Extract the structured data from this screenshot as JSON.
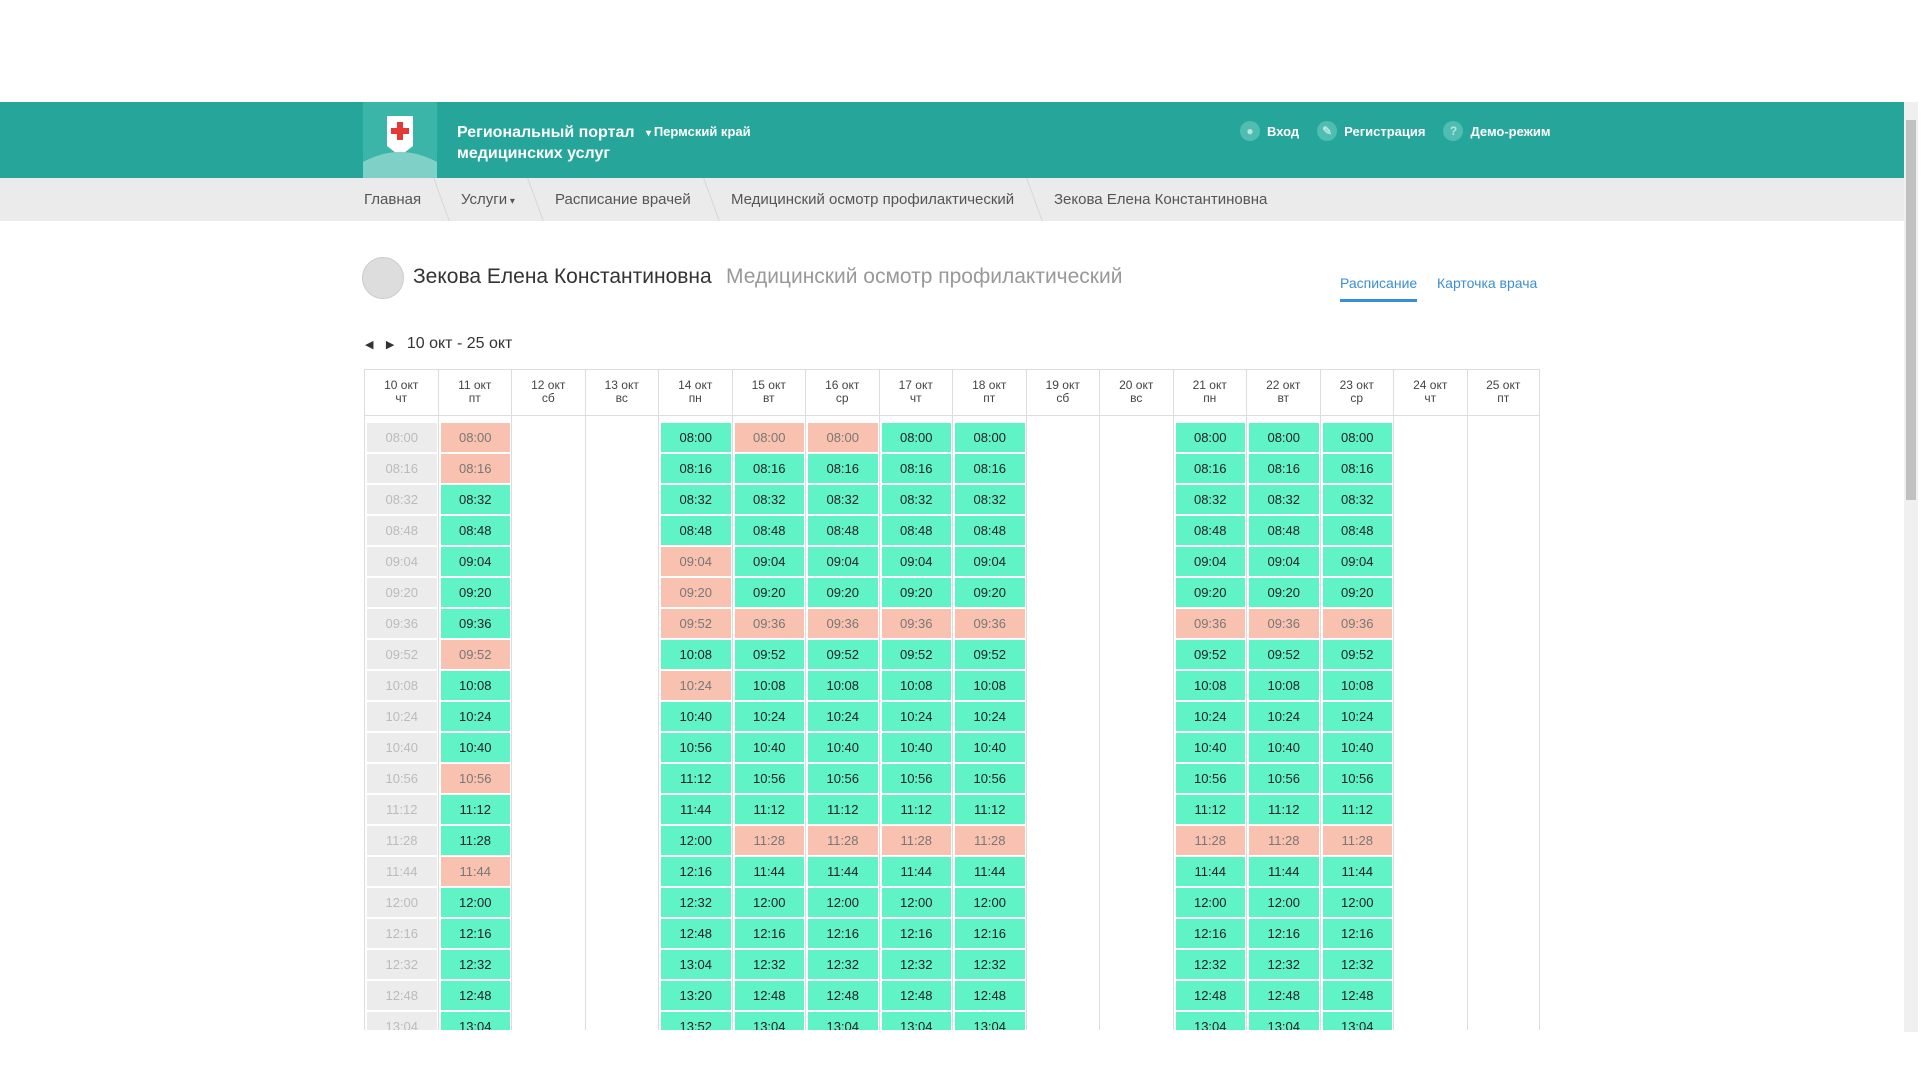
{
  "header": {
    "portal_title_line1": "Региональный портал",
    "portal_title_line2": "медицинских услуг",
    "region": "Пермский край",
    "links": [
      "Вход",
      "Регистрация",
      "Демо-режим"
    ]
  },
  "breadcrumbs": [
    "Главная",
    "Услуги",
    "Расписание врачей",
    "Медицинский осмотр профилактический",
    "Зекова Елена Константиновна"
  ],
  "doctor": {
    "name": "Зекова Елена Константиновна",
    "service": "Медицинский осмотр профилактический"
  },
  "tabs": [
    "Расписание",
    "Карточка врача"
  ],
  "active_tab": 0,
  "date_range": "10 окт - 25 окт",
  "schedule": {
    "columns": [
      {
        "date": "10 окт",
        "day": "чт",
        "times": [
          "08:00",
          "08:16",
          "08:32",
          "08:48",
          "09:04",
          "09:20",
          "09:36",
          "09:52",
          "10:08",
          "10:24",
          "10:40",
          "10:56",
          "11:12",
          "11:28",
          "11:44",
          "12:00",
          "12:16",
          "12:32",
          "12:48",
          "13:04"
        ],
        "states": [
          "past",
          "past",
          "past",
          "past",
          "past",
          "past",
          "past",
          "past",
          "past",
          "past",
          "past",
          "past",
          "past",
          "past",
          "past",
          "past",
          "past",
          "past",
          "past",
          "past"
        ]
      },
      {
        "date": "11 окт",
        "day": "пт",
        "times": [
          "08:00",
          "08:16",
          "08:32",
          "08:48",
          "09:04",
          "09:20",
          "09:36",
          "09:52",
          "10:08",
          "10:24",
          "10:40",
          "10:56",
          "11:12",
          "11:28",
          "11:44",
          "12:00",
          "12:16",
          "12:32",
          "12:48",
          "13:04"
        ],
        "states": [
          "busy",
          "busy",
          "free",
          "free",
          "free",
          "free",
          "free",
          "busy",
          "free",
          "free",
          "free",
          "busy",
          "free",
          "free",
          "busy",
          "free",
          "free",
          "free",
          "free",
          "free"
        ]
      },
      {
        "date": "12 окт",
        "day": "сб",
        "times": [],
        "states": []
      },
      {
        "date": "13 окт",
        "day": "вс",
        "times": [],
        "states": []
      },
      {
        "date": "14 окт",
        "day": "пн",
        "times": [
          "08:00",
          "08:16",
          "08:32",
          "08:48",
          "09:04",
          "09:20",
          "09:52",
          "10:08",
          "10:24",
          "10:40",
          "10:56",
          "11:12",
          "11:44",
          "12:00",
          "12:16",
          "12:32",
          "12:48",
          "13:04",
          "13:20",
          "13:52"
        ],
        "states": [
          "free",
          "free",
          "free",
          "free",
          "busy",
          "busy",
          "busy",
          "free",
          "busy",
          "free",
          "free",
          "free",
          "free",
          "free",
          "free",
          "free",
          "free",
          "free",
          "free",
          "free"
        ]
      },
      {
        "date": "15 окт",
        "day": "вт",
        "times": [
          "08:00",
          "08:16",
          "08:32",
          "08:48",
          "09:04",
          "09:20",
          "09:36",
          "09:52",
          "10:08",
          "10:24",
          "10:40",
          "10:56",
          "11:12",
          "11:28",
          "11:44",
          "12:00",
          "12:16",
          "12:32",
          "12:48",
          "13:04"
        ],
        "states": [
          "busy",
          "free",
          "free",
          "free",
          "free",
          "free",
          "busy",
          "free",
          "free",
          "free",
          "free",
          "free",
          "free",
          "busy",
          "free",
          "free",
          "free",
          "free",
          "free",
          "free"
        ]
      },
      {
        "date": "16 окт",
        "day": "ср",
        "times": [
          "08:00",
          "08:16",
          "08:32",
          "08:48",
          "09:04",
          "09:20",
          "09:36",
          "09:52",
          "10:08",
          "10:24",
          "10:40",
          "10:56",
          "11:12",
          "11:28",
          "11:44",
          "12:00",
          "12:16",
          "12:32",
          "12:48",
          "13:04"
        ],
        "states": [
          "busy",
          "free",
          "free",
          "free",
          "free",
          "free",
          "busy",
          "free",
          "free",
          "free",
          "free",
          "free",
          "free",
          "busy",
          "free",
          "free",
          "free",
          "free",
          "free",
          "free"
        ]
      },
      {
        "date": "17 окт",
        "day": "чт",
        "times": [
          "08:00",
          "08:16",
          "08:32",
          "08:48",
          "09:04",
          "09:20",
          "09:36",
          "09:52",
          "10:08",
          "10:24",
          "10:40",
          "10:56",
          "11:12",
          "11:28",
          "11:44",
          "12:00",
          "12:16",
          "12:32",
          "12:48",
          "13:04"
        ],
        "states": [
          "free",
          "free",
          "free",
          "free",
          "free",
          "free",
          "busy",
          "free",
          "free",
          "free",
          "free",
          "free",
          "free",
          "busy",
          "free",
          "free",
          "free",
          "free",
          "free",
          "free"
        ]
      },
      {
        "date": "18 окт",
        "day": "пт",
        "times": [
          "08:00",
          "08:16",
          "08:32",
          "08:48",
          "09:04",
          "09:20",
          "09:36",
          "09:52",
          "10:08",
          "10:24",
          "10:40",
          "10:56",
          "11:12",
          "11:28",
          "11:44",
          "12:00",
          "12:16",
          "12:32",
          "12:48",
          "13:04"
        ],
        "states": [
          "free",
          "free",
          "free",
          "free",
          "free",
          "free",
          "busy",
          "free",
          "free",
          "free",
          "free",
          "free",
          "free",
          "busy",
          "free",
          "free",
          "free",
          "free",
          "free",
          "free"
        ]
      },
      {
        "date": "19 окт",
        "day": "сб",
        "times": [],
        "states": []
      },
      {
        "date": "20 окт",
        "day": "вс",
        "times": [],
        "states": []
      },
      {
        "date": "21 окт",
        "day": "пн",
        "times": [
          "08:00",
          "08:16",
          "08:32",
          "08:48",
          "09:04",
          "09:20",
          "09:36",
          "09:52",
          "10:08",
          "10:24",
          "10:40",
          "10:56",
          "11:12",
          "11:28",
          "11:44",
          "12:00",
          "12:16",
          "12:32",
          "12:48",
          "13:04"
        ],
        "states": [
          "free",
          "free",
          "free",
          "free",
          "free",
          "free",
          "busy",
          "free",
          "free",
          "free",
          "free",
          "free",
          "free",
          "busy",
          "free",
          "free",
          "free",
          "free",
          "free",
          "free"
        ]
      },
      {
        "date": "22 окт",
        "day": "вт",
        "times": [
          "08:00",
          "08:16",
          "08:32",
          "08:48",
          "09:04",
          "09:20",
          "09:36",
          "09:52",
          "10:08",
          "10:24",
          "10:40",
          "10:56",
          "11:12",
          "11:28",
          "11:44",
          "12:00",
          "12:16",
          "12:32",
          "12:48",
          "13:04"
        ],
        "states": [
          "free",
          "free",
          "free",
          "free",
          "free",
          "free",
          "busy",
          "free",
          "free",
          "free",
          "free",
          "free",
          "free",
          "busy",
          "free",
          "free",
          "free",
          "free",
          "free",
          "free"
        ]
      },
      {
        "date": "23 окт",
        "day": "ср",
        "times": [
          "08:00",
          "08:16",
          "08:32",
          "08:48",
          "09:04",
          "09:20",
          "09:36",
          "09:52",
          "10:08",
          "10:24",
          "10:40",
          "10:56",
          "11:12",
          "11:28",
          "11:44",
          "12:00",
          "12:16",
          "12:32",
          "12:48",
          "13:04"
        ],
        "states": [
          "free",
          "free",
          "free",
          "free",
          "free",
          "free",
          "busy",
          "free",
          "free",
          "free",
          "free",
          "free",
          "free",
          "busy",
          "free",
          "free",
          "free",
          "free",
          "free",
          "free"
        ]
      },
      {
        "date": "24 окт",
        "day": "чт",
        "times": [],
        "states": []
      },
      {
        "date": "25 окт",
        "day": "пт",
        "times": [],
        "states": []
      }
    ]
  }
}
